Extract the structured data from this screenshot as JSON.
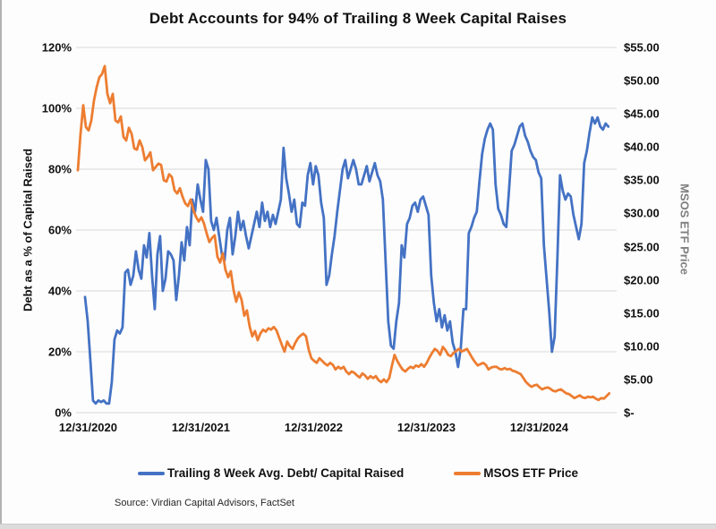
{
  "source": "Source: Virdian Capital Advisors, FactSet",
  "chart_data": {
    "type": "line",
    "title": "Debt Accounts for 94% of Trailing 8 Week Capital Raises",
    "grid": "horizontal-only",
    "grid_color": "#d9d9d9",
    "background": "#ffffff",
    "x_axis": {
      "tick_labels": [
        "12/31/2020",
        "12/31/2021",
        "12/31/2022",
        "12/31/2023",
        "12/31/2024"
      ],
      "tick_positions_years": [
        2021,
        2022,
        2023,
        2024,
        2025
      ],
      "range_years": [
        2020.893,
        2025.687
      ]
    },
    "y_left": {
      "title": "Debt as a % of Capital Raised",
      "tick_labels": [
        "120%",
        "100%",
        "80%",
        "60%",
        "40%",
        "20%",
        "0%"
      ],
      "range": [
        0,
        120
      ],
      "unit": "%"
    },
    "y_right": {
      "title": "MSOS ETF Price",
      "tick_labels": [
        "$55.00",
        "$50.00",
        "$45.00",
        "$40.00",
        "$35.00",
        "$30.00",
        "$25.00",
        "$20.00",
        "$15.00",
        "$10.00",
        "$5.00",
        "$-"
      ],
      "range": [
        0,
        55
      ],
      "unit": "USD"
    },
    "legend_position": "bottom-center",
    "series": [
      {
        "name": "Trailing 8 Week Avg. Debt/ Capital Raised",
        "axis": "left",
        "unit": "%",
        "color": "#4472C4",
        "x_start_year": 2020.972,
        "x_step_years": 0.0238,
        "values": [
          38,
          30,
          17,
          4,
          3,
          4,
          3.5,
          4,
          3,
          3,
          10,
          24,
          27,
          26,
          28,
          46,
          47,
          42,
          45,
          53,
          47,
          44,
          55,
          51,
          59,
          45,
          34,
          52,
          58,
          40,
          44,
          53,
          52,
          50,
          37,
          45,
          56,
          50,
          61,
          55,
          70,
          66,
          75,
          70,
          66,
          83,
          80,
          63,
          60,
          64,
          58,
          52,
          50,
          60,
          64,
          52,
          58,
          66,
          60,
          63,
          58,
          54,
          58,
          62,
          66,
          61,
          69,
          63,
          66,
          61,
          65,
          62,
          66,
          70,
          87,
          77,
          72,
          66,
          70,
          62,
          61,
          69,
          68,
          78,
          82,
          75,
          81,
          78,
          69,
          64,
          42,
          45,
          52,
          58,
          66,
          73,
          80,
          83,
          77,
          80,
          83,
          80,
          75,
          75,
          78,
          81,
          76,
          79,
          82,
          78,
          76,
          70,
          50,
          30,
          22,
          21,
          30,
          36,
          55,
          51,
          62,
          64,
          68,
          69,
          66,
          70,
          71,
          68,
          65,
          45,
          36,
          30,
          34,
          28,
          32,
          27,
          30,
          23,
          20,
          15,
          21,
          34,
          34,
          59,
          61,
          64,
          66,
          76,
          85,
          90,
          93,
          95,
          93,
          75,
          67,
          65,
          62,
          61,
          73,
          86,
          88,
          91,
          94,
          95,
          91,
          89,
          86,
          84,
          83,
          79,
          77,
          55,
          44,
          33,
          20,
          25,
          50,
          78,
          73,
          70,
          72,
          71,
          65,
          61,
          57,
          62,
          82,
          86,
          92,
          97,
          95,
          97,
          94,
          93,
          95,
          94
        ]
      },
      {
        "name": "MSOS ETF Price",
        "axis": "right",
        "unit": "USD",
        "color": "#ED7D31",
        "x_start_year": 2020.909,
        "x_step_years": 0.0238,
        "values": [
          36.5,
          42,
          46.3,
          43,
          42.5,
          44,
          47,
          49,
          50.5,
          51,
          52.2,
          48,
          46.6,
          48,
          44,
          43.7,
          44.6,
          41.5,
          41,
          42.9,
          42,
          39.8,
          39.6,
          41,
          40,
          38,
          38.5,
          39.2,
          36.5,
          37,
          37.5,
          37.3,
          35,
          34.8,
          35.9,
          35.5,
          33.5,
          33,
          33.8,
          32.5,
          31.5,
          31.1,
          32.1,
          30.5,
          29.5,
          28.8,
          29.4,
          28.5,
          27,
          25.7,
          26.3,
          26.7,
          23.5,
          22.6,
          24,
          21.5,
          20.4,
          21.3,
          18.5,
          16.7,
          18.1,
          17,
          14.6,
          15.4,
          13,
          11.5,
          12.3,
          10.9,
          11.9,
          12.5,
          12.2,
          12.7,
          12.5,
          12.9,
          12.4,
          11.3,
          10.2,
          9.2,
          10.7,
          10,
          9.6,
          10.5,
          11.2,
          11.6,
          11.9,
          11.5,
          9.5,
          8.2,
          7.8,
          7.5,
          8.2,
          7.8,
          7.4,
          7.1,
          7.5,
          7.2,
          6.5,
          6.9,
          6.6,
          6.9,
          6.2,
          5.8,
          6.2,
          6.0,
          5.6,
          5.3,
          5.9,
          5.6,
          5.1,
          5.5,
          5.2,
          5.5,
          4.9,
          4.6,
          5.0,
          4.6,
          5.2,
          7.0,
          8.7,
          7.8,
          7.1,
          6.5,
          6.2,
          6.6,
          6.9,
          6.7,
          7.1,
          6.9,
          7.3,
          6.9,
          7.5,
          8.3,
          9.0,
          9.6,
          9.3,
          8.7,
          9.9,
          9.4,
          8.7,
          8.5,
          9.0,
          9.3,
          9.6,
          9.2,
          9.4,
          9.6,
          8.9,
          8.2,
          7.6,
          7.1,
          7.3,
          7.5,
          7.2,
          6.5,
          6.8,
          6.9,
          6.9,
          6.6,
          6.5,
          6.7,
          6.5,
          6.6,
          6.3,
          6.2,
          6.0,
          5.8,
          5.2,
          4.6,
          4.2,
          3.9,
          4.1,
          4.2,
          3.8,
          3.5,
          3.7,
          3.8,
          3.6,
          3.3,
          3.2,
          3.4,
          3.5,
          3.2,
          2.9,
          2.8,
          2.5,
          2.2,
          2.4,
          2.6,
          2.3,
          2.2,
          2.4,
          2.3,
          2.4,
          2.1,
          1.9,
          2.2,
          2.1,
          2.5,
          2.9
        ]
      }
    ]
  }
}
